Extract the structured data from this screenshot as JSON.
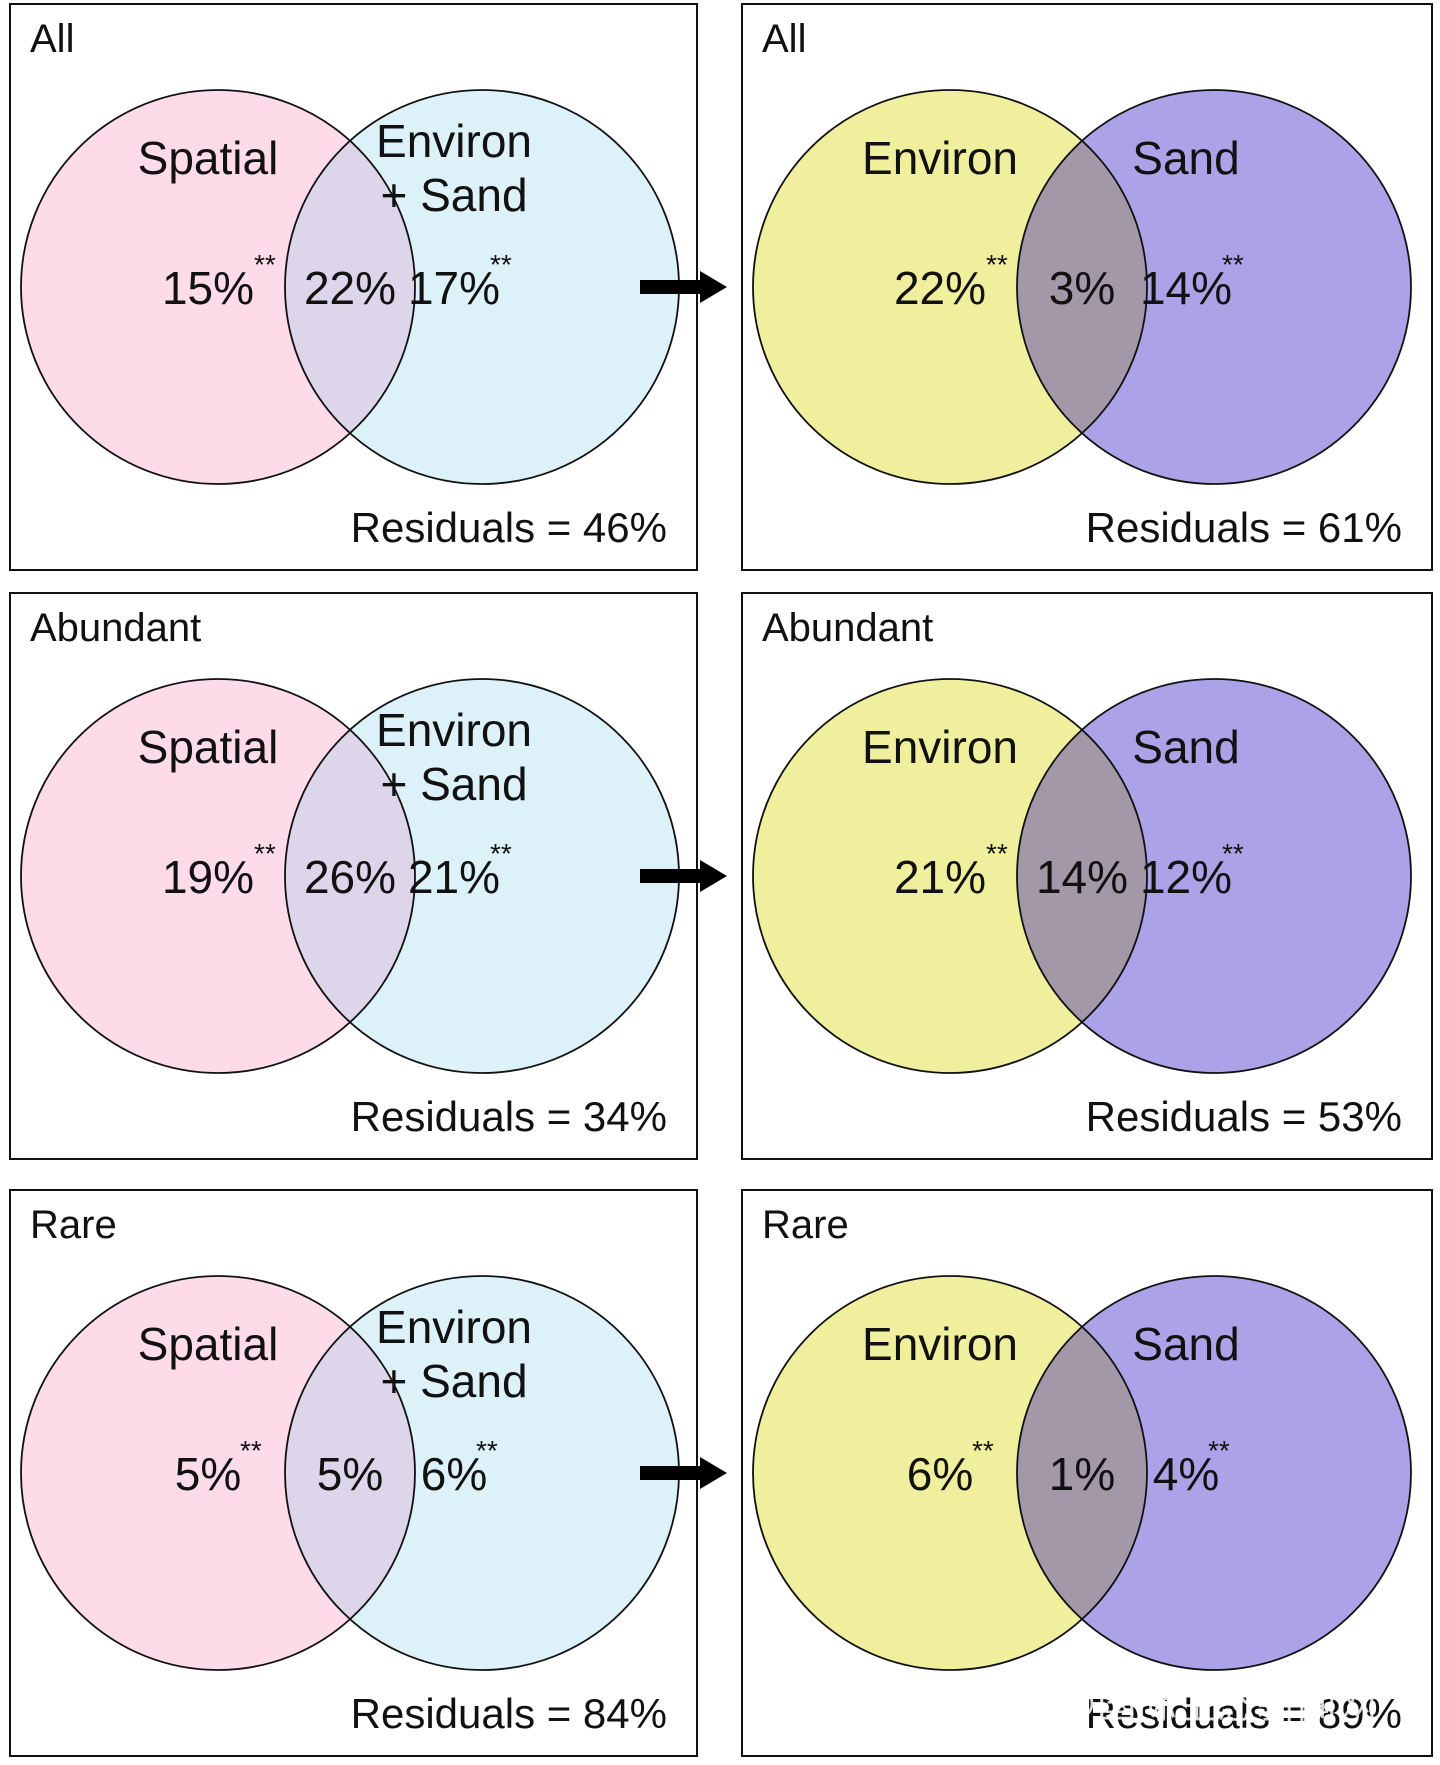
{
  "colors": {
    "spatial": "#fddbe8",
    "environ_sand": "#ddf1f9",
    "overlap_left": "#ddd6ea",
    "environ": "#f0ef9e",
    "sand": "#aba2e7",
    "overlap_right": "#a298a8"
  },
  "arrow_icon": "right-arrow-icon",
  "rows": [
    {
      "left": {
        "title": "All",
        "circle_a_label": [
          "Spatial"
        ],
        "circle_b_label": [
          "Environ",
          "+ Sand"
        ],
        "a_value": "15%",
        "a_sig": "**",
        "overlap_value": "22%",
        "b_value": "17%",
        "b_sig": "**",
        "residuals": "Residuals = 46%"
      },
      "right": {
        "title": "All",
        "circle_a_label": [
          "Environ"
        ],
        "circle_b_label": [
          "Sand"
        ],
        "a_value": "22%",
        "a_sig": "**",
        "overlap_value": "3%",
        "b_value": "14%",
        "b_sig": "**",
        "residuals": "Residuals = 61%"
      }
    },
    {
      "left": {
        "title": "Abundant",
        "circle_a_label": [
          "Spatial"
        ],
        "circle_b_label": [
          "Environ",
          "+ Sand"
        ],
        "a_value": "19%",
        "a_sig": "**",
        "overlap_value": "26%",
        "b_value": "21%",
        "b_sig": "**",
        "residuals": "Residuals = 34%"
      },
      "right": {
        "title": "Abundant",
        "circle_a_label": [
          "Environ"
        ],
        "circle_b_label": [
          "Sand"
        ],
        "a_value": "21%",
        "a_sig": "**",
        "overlap_value": "14%",
        "b_value": "12%",
        "b_sig": "**",
        "residuals": "Residuals = 53%"
      }
    },
    {
      "left": {
        "title": "Rare",
        "circle_a_label": [
          "Spatial"
        ],
        "circle_b_label": [
          "Environ",
          "+ Sand"
        ],
        "a_value": "5%",
        "a_sig": "**",
        "overlap_value": "5%",
        "b_value": "6%",
        "b_sig": "**",
        "residuals": "Residuals = 84%"
      },
      "right": {
        "title": "Rare",
        "circle_a_label": [
          "Environ"
        ],
        "circle_b_label": [
          "Sand"
        ],
        "a_value": "6%",
        "a_sig": "**",
        "overlap_value": "1%",
        "b_value": "4%",
        "b_sig": "**",
        "residuals": "Residuals = 89%"
      }
    }
  ],
  "watermark": "知乎 @国际生态新闻网"
}
